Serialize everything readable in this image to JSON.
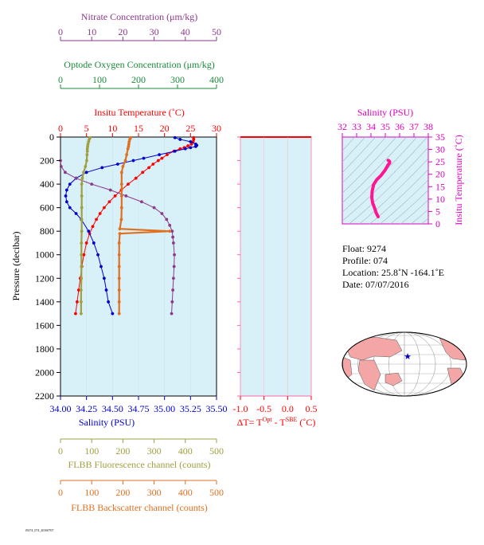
{
  "colors": {
    "nitrate": "#8b3a8b",
    "oxygen": "#1a8a3a",
    "temperature": "#ff0000",
    "salinity": "#0000cc",
    "fluorescence": "#a0a040",
    "backscatter": "#e07020",
    "ts_axis": "#e000c0",
    "panel_bg": "#d8f0f8",
    "map_land": "#f4a6a6"
  },
  "labels": {
    "nitrate_title": "Nitrate Concentration (μm/kg)",
    "oxygen_title": "Optode Oxygen Concentration (μm/kg)",
    "temperature_title": "Insitu Temperature (˚C)",
    "salinity_title": "Salinity (PSU)",
    "pressure_title": "Pressure (decibar)",
    "fluorescence_title": "FLBB Fluorescence channel (counts)",
    "backscatter_title": "FLBB Backscatter channel (counts)",
    "delta_t_title": "ΔT= T",
    "delta_t_sup1": "Opt",
    "delta_t_mid": " - T",
    "delta_t_sup2": "SBE",
    "delta_t_end": " (˚C)",
    "ts_top_title": "Salinity (PSU)",
    "ts_right_title": "Insitu Temperature (˚C)",
    "footer_code": "f9274_074_20160707"
  },
  "info": {
    "float": "Float:  9274",
    "profile": "Profile:  074",
    "location": "Location:  25.8˚N  -164.1˚E",
    "date": "Date:  07/07/2016"
  },
  "chart_data": [
    {
      "type": "line",
      "title": "",
      "ylabel": "Pressure (decibar)",
      "ylim": [
        2200,
        0
      ],
      "y_ticks": [
        0,
        200,
        400,
        600,
        800,
        1000,
        1200,
        1400,
        1600,
        1800,
        2000,
        2200
      ],
      "axes": {
        "nitrate": {
          "label": "Nitrate Concentration (μm/kg)",
          "range": [
            0,
            50
          ],
          "ticks": [
            0,
            10,
            20,
            30,
            40,
            50
          ]
        },
        "oxygen": {
          "label": "Optode Oxygen Concentration (μm/kg)",
          "range": [
            0,
            400
          ],
          "ticks": [
            0,
            100,
            200,
            300,
            400
          ]
        },
        "temperature": {
          "label": "Insitu Temperature (˚C)",
          "range": [
            0,
            30
          ],
          "ticks": [
            0,
            5,
            10,
            15,
            20,
            25,
            30
          ]
        },
        "salinity": {
          "label": "Salinity (PSU)",
          "range": [
            34.0,
            35.5
          ],
          "ticks": [
            "34.00",
            "34.25",
            "34.50",
            "34.75",
            "35.00",
            "35.25",
            "35.50"
          ]
        },
        "fluorescence": {
          "label": "FLBB Fluorescence channel (counts)",
          "range": [
            0,
            500
          ],
          "ticks": [
            0,
            100,
            200,
            300,
            400,
            500
          ]
        },
        "backscatter": {
          "label": "FLBB Backscatter channel (counts)",
          "range": [
            0,
            500
          ],
          "ticks": [
            0,
            100,
            200,
            300,
            400,
            500
          ]
        }
      },
      "series": [
        {
          "key": "temperature",
          "pressure": [
            5,
            20,
            40,
            60,
            75,
            90,
            100,
            120,
            150,
            180,
            200,
            230,
            260,
            300,
            350,
            400,
            450,
            500,
            550,
            600,
            650,
            700,
            760,
            820,
            900,
            1000,
            1100,
            1200,
            1300,
            1400,
            1500
          ],
          "values": [
            25.6,
            25.6,
            25.5,
            25.2,
            24.5,
            23.8,
            23.0,
            21.8,
            20.5,
            19.5,
            18.8,
            17.8,
            17.0,
            15.8,
            14.5,
            13.0,
            11.7,
            10.5,
            9.4,
            8.4,
            7.6,
            6.9,
            6.2,
            5.6,
            5.0,
            4.5,
            4.1,
            3.8,
            3.5,
            3.2,
            2.9
          ]
        },
        {
          "key": "salinity",
          "pressure": [
            5,
            20,
            40,
            60,
            70,
            80,
            90,
            100,
            120,
            150,
            180,
            200,
            230,
            260,
            300,
            350,
            400,
            450,
            500,
            550,
            600,
            650,
            700,
            800,
            900,
            1000,
            1100,
            1200,
            1300,
            1400,
            1500
          ],
          "values": [
            35.1,
            35.15,
            35.25,
            35.3,
            35.31,
            35.3,
            35.25,
            35.2,
            35.1,
            34.95,
            34.8,
            34.7,
            34.55,
            34.4,
            34.25,
            34.15,
            34.09,
            34.06,
            34.05,
            34.06,
            34.09,
            34.15,
            34.2,
            34.27,
            34.32,
            34.36,
            34.39,
            34.42,
            34.44,
            34.46,
            34.5
          ]
        },
        {
          "key": "nitrate",
          "pressure": [
            200,
            250,
            300,
            350,
            400,
            450,
            500,
            550,
            600,
            650,
            700,
            750,
            800,
            850,
            900,
            1000,
            1100,
            1200,
            1300,
            1400,
            1500
          ],
          "values": [
            0.0,
            0.2,
            1.5,
            5.0,
            10.0,
            16.0,
            21.0,
            26.0,
            30.0,
            32.5,
            34.0,
            35.0,
            35.8,
            36.0,
            36.2,
            36.5,
            36.4,
            36.2,
            36.0,
            35.8,
            35.6
          ]
        },
        {
          "key": "fluorescence",
          "pressure": [
            5,
            20,
            40,
            60,
            80,
            100,
            120,
            150,
            200,
            250,
            300,
            350,
            400,
            500,
            600,
            700,
            800,
            900,
            1000,
            1100,
            1200,
            1300,
            1400,
            1500
          ],
          "values": [
            95,
            92,
            90,
            88,
            87,
            86,
            86,
            85,
            84,
            80,
            74,
            70,
            68,
            68,
            68,
            68,
            68,
            67,
            67,
            67,
            67,
            66,
            66,
            66
          ]
        },
        {
          "key": "backscatter",
          "pressure": [
            5,
            20,
            40,
            60,
            80,
            100,
            150,
            200,
            250,
            300,
            400,
            500,
            600,
            700,
            780,
            800,
            820,
            900,
            1000,
            1100,
            1200,
            1300,
            1400,
            1500
          ],
          "values": [
            225,
            222,
            220,
            219,
            218,
            216,
            212,
            208,
            200,
            196,
            196,
            196,
            196,
            195,
            190,
            350,
            190,
            188,
            188,
            188,
            188,
            188,
            188,
            188
          ]
        }
      ]
    },
    {
      "type": "line",
      "title": "",
      "xlabel": "ΔT= T Opt - T SBE (˚C)",
      "xlim": [
        -1.0,
        0.5
      ],
      "x_ticks": [
        "-1.0",
        "-0.5",
        "0.0",
        "0.5"
      ],
      "ylim": [
        2200,
        0
      ],
      "series": []
    },
    {
      "type": "line",
      "title": "",
      "xlabel": "Salinity (PSU)",
      "ylabel": "Insitu Temperature (˚C)",
      "xlim": [
        32,
        38
      ],
      "ylim": [
        0,
        35
      ],
      "x_ticks": [
        32,
        33,
        34,
        35,
        36,
        37,
        38
      ],
      "y_ticks": [
        0,
        5,
        10,
        15,
        20,
        25,
        30,
        35
      ],
      "series": [
        {
          "name": "",
          "x": [
            34.5,
            34.42,
            34.36,
            34.3,
            34.22,
            34.12,
            34.06,
            34.08,
            34.18,
            34.4,
            34.7,
            35.0,
            35.2,
            35.3,
            35.3,
            35.2
          ],
          "y": [
            2.9,
            3.8,
            4.5,
            5.6,
            6.9,
            8.4,
            10.5,
            13.0,
            15.8,
            17.8,
            19.5,
            21.8,
            23.8,
            24.5,
            25.2,
            25.6
          ]
        }
      ]
    }
  ]
}
